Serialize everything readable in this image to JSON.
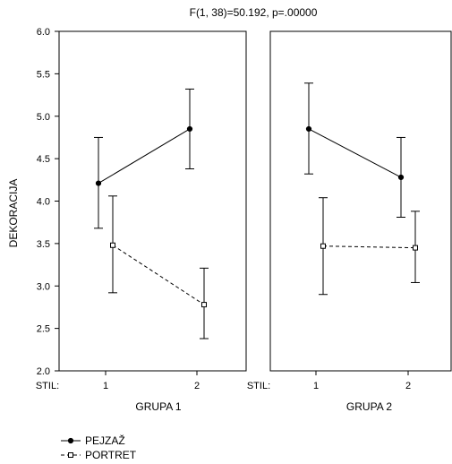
{
  "chart_data": {
    "type": "line",
    "title": "F(1, 38)=50.192, p=.00000",
    "ylabel": "DEKORACIJA",
    "ylim": [
      2.0,
      6.0
    ],
    "yticks": [
      "2.0",
      "2.5",
      "3.0",
      "3.5",
      "4.0",
      "4.5",
      "5.0",
      "5.5",
      "6.0"
    ],
    "x_factor_label": "STIL:",
    "categories": [
      "1",
      "2"
    ],
    "grid": false,
    "legend_position": "bottom-left",
    "colors": {
      "axis": "#000000",
      "line": "#000000",
      "background": "#ffffff"
    },
    "series": [
      {
        "name": "PEJZAŽ",
        "marker": "filled-circle",
        "line": "solid"
      },
      {
        "name": "PORTRET",
        "marker": "open-square",
        "line": "dashed"
      }
    ],
    "panels": [
      {
        "label": "GRUPA 1",
        "data": [
          {
            "values": [
              4.21,
              4.85
            ],
            "lower": [
              3.68,
              4.38
            ],
            "upper": [
              4.75,
              5.32
            ]
          },
          {
            "values": [
              3.48,
              2.78
            ],
            "lower": [
              2.92,
              2.38
            ],
            "upper": [
              4.06,
              3.21
            ]
          }
        ]
      },
      {
        "label": "GRUPA 2",
        "data": [
          {
            "values": [
              4.85,
              4.28
            ],
            "lower": [
              4.32,
              3.81
            ],
            "upper": [
              5.39,
              4.75
            ]
          },
          {
            "values": [
              3.47,
              3.45
            ],
            "lower": [
              2.9,
              3.04
            ],
            "upper": [
              4.04,
              3.88
            ]
          }
        ]
      }
    ]
  }
}
